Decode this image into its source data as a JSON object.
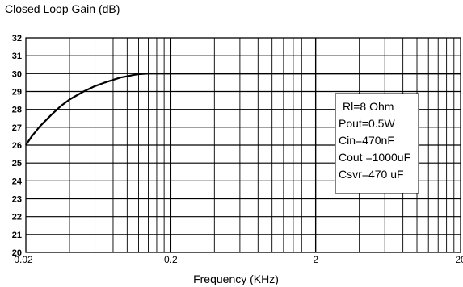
{
  "chart_data": {
    "type": "line",
    "title": "",
    "ylabel": "Closed Loop Gain (dB)",
    "xlabel": "Frequency  (KHz)",
    "x_scale": "log",
    "xlim": [
      0.02,
      20
    ],
    "ylim": [
      20,
      32
    ],
    "grid": true,
    "yticks": [
      "20",
      "21",
      "22",
      "23",
      "24",
      "25",
      "26",
      "27",
      "28",
      "29",
      "30",
      "31",
      "32"
    ],
    "xtick_values": [
      0.02,
      0.2,
      2,
      20
    ],
    "xtick_labels": [
      "0.02",
      "0.2",
      "2",
      "20"
    ],
    "series": [
      {
        "x": [
          0.02,
          0.022,
          0.025,
          0.03,
          0.035,
          0.04,
          0.05,
          0.06,
          0.07,
          0.08,
          0.09,
          0.1,
          0.11,
          0.12,
          0.14,
          0.2,
          0.5,
          1,
          2,
          5,
          10,
          20
        ],
        "y": [
          26.0,
          26.5,
          27.05,
          27.7,
          28.2,
          28.55,
          29.0,
          29.3,
          29.5,
          29.65,
          29.78,
          29.85,
          29.92,
          29.97,
          30.0,
          30.0,
          30.0,
          30.0,
          30.0,
          30.0,
          30.0,
          30.0
        ]
      }
    ],
    "legend_box": {
      "position": "right",
      "lines": [
        "Rl=8 Ohm",
        "Pout=0.5W",
        "Cin=470nF",
        "Cout =1000uF",
        "Csvr=470 uF"
      ]
    }
  }
}
